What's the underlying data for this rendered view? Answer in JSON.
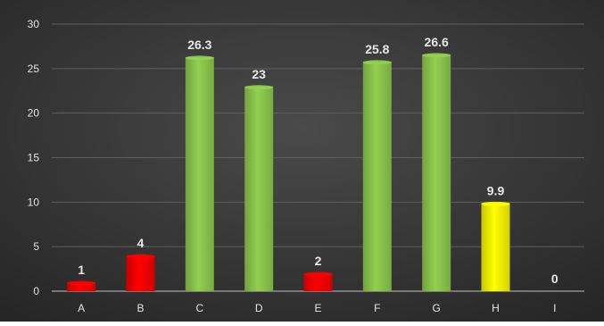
{
  "chart_data": {
    "type": "bar",
    "title": "",
    "xlabel": "",
    "ylabel": "",
    "categories": [
      "A",
      "B",
      "C",
      "D",
      "E",
      "F",
      "G",
      "H",
      "I"
    ],
    "values": [
      1,
      4,
      26.3,
      23,
      2,
      25.8,
      26.6,
      9.9,
      0
    ],
    "data_labels": [
      "1",
      "4",
      "26.3",
      "23",
      "2",
      "25.8",
      "26.6",
      "9.9",
      "0"
    ],
    "bar_colors": [
      "#ff0000",
      "#ff0000",
      "#92d050",
      "#92d050",
      "#ff0000",
      "#92d050",
      "#92d050",
      "#ffff00",
      "#92d050"
    ],
    "ylim": [
      0,
      30
    ],
    "yticks": [
      0,
      5,
      10,
      15,
      20,
      25,
      30
    ],
    "ytick_labels": [
      "0",
      "5",
      "10",
      "15",
      "20",
      "25",
      "30"
    ],
    "grid": true,
    "legend": "none",
    "background_color": "#3a3a3a"
  }
}
